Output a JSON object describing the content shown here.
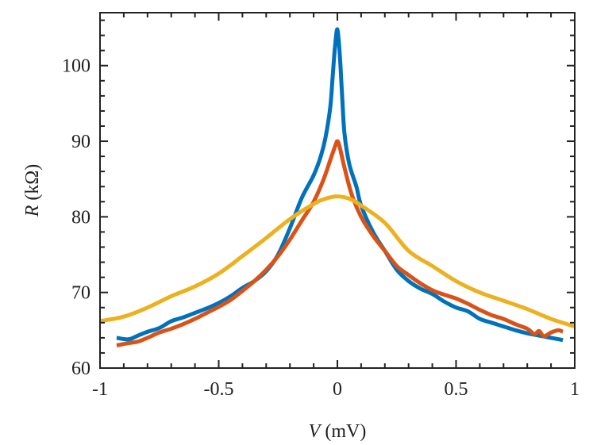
{
  "chart_data": {
    "type": "line",
    "title": "",
    "xlabel": {
      "var": "V",
      "unit": " (mV)"
    },
    "ylabel": {
      "var": "R",
      "unit": " (kΩ)"
    },
    "xlim": [
      -1,
      1
    ],
    "ylim": [
      60,
      107
    ],
    "grid": false,
    "legend": "none",
    "x_ticks": [
      {
        "value": -1,
        "label": "-1"
      },
      {
        "value": -0.5,
        "label": "-0.5"
      },
      {
        "value": 0,
        "label": "0"
      },
      {
        "value": 0.5,
        "label": "0.5"
      },
      {
        "value": 1,
        "label": "1"
      }
    ],
    "y_ticks": [
      {
        "value": 60,
        "label": "60"
      },
      {
        "value": 70,
        "label": "70"
      },
      {
        "value": 80,
        "label": "80"
      },
      {
        "value": 90,
        "label": "90"
      },
      {
        "value": 100,
        "label": "100"
      }
    ],
    "series": [
      {
        "name": "blue",
        "color": "#0072BD",
        "x": [
          -0.93,
          -0.88,
          -0.84,
          -0.8,
          -0.75,
          -0.7,
          -0.65,
          -0.6,
          -0.55,
          -0.5,
          -0.45,
          -0.4,
          -0.35,
          -0.3,
          -0.25,
          -0.2,
          -0.15,
          -0.1,
          -0.07,
          -0.05,
          -0.03,
          -0.02,
          -0.01,
          0,
          0.01,
          0.02,
          0.03,
          0.05,
          0.08,
          0.1,
          0.15,
          0.2,
          0.25,
          0.3,
          0.35,
          0.4,
          0.45,
          0.5,
          0.55,
          0.6,
          0.65,
          0.7,
          0.75,
          0.8,
          0.85,
          0.9,
          0.95
        ],
        "y": [
          64.0,
          63.8,
          64.3,
          64.8,
          65.3,
          66.2,
          66.7,
          67.3,
          67.9,
          68.6,
          69.5,
          70.6,
          71.5,
          72.8,
          75.0,
          78.5,
          82.5,
          85.5,
          88.0,
          90.5,
          94.5,
          98.5,
          102.5,
          104.8,
          101.5,
          96.0,
          91.0,
          87.0,
          84.0,
          81.5,
          78.0,
          75.5,
          73.0,
          71.5,
          70.5,
          69.8,
          68.8,
          68.0,
          67.5,
          66.5,
          66.0,
          65.5,
          65.0,
          64.6,
          64.3,
          64.0,
          63.7
        ]
      },
      {
        "name": "orange",
        "color": "#D95319",
        "x": [
          -0.93,
          -0.88,
          -0.84,
          -0.8,
          -0.75,
          -0.7,
          -0.65,
          -0.6,
          -0.55,
          -0.5,
          -0.45,
          -0.4,
          -0.35,
          -0.3,
          -0.25,
          -0.2,
          -0.15,
          -0.1,
          -0.06,
          -0.03,
          -0.01,
          0,
          0.01,
          0.03,
          0.06,
          0.1,
          0.15,
          0.2,
          0.25,
          0.3,
          0.35,
          0.4,
          0.45,
          0.5,
          0.55,
          0.6,
          0.65,
          0.7,
          0.75,
          0.8,
          0.83,
          0.85,
          0.87,
          0.9,
          0.93,
          0.95
        ],
        "y": [
          63.0,
          63.3,
          63.5,
          64.0,
          64.7,
          65.2,
          65.8,
          66.5,
          67.3,
          68.1,
          69.0,
          70.2,
          71.5,
          73.0,
          74.8,
          77.0,
          79.5,
          82.0,
          84.8,
          87.5,
          89.3,
          90.0,
          89.2,
          86.5,
          83.0,
          80.0,
          77.5,
          75.5,
          73.5,
          72.3,
          71.2,
          70.3,
          69.7,
          69.2,
          68.5,
          67.7,
          67.0,
          66.5,
          65.8,
          65.2,
          64.5,
          64.9,
          64.2,
          64.7,
          65.0,
          64.8
        ]
      },
      {
        "name": "yellow",
        "color": "#EDB120",
        "x": [
          -1,
          -0.9,
          -0.8,
          -0.7,
          -0.6,
          -0.5,
          -0.4,
          -0.3,
          -0.2,
          -0.1,
          -0.05,
          0,
          0.05,
          0.1,
          0.2,
          0.3,
          0.4,
          0.5,
          0.6,
          0.7,
          0.8,
          0.9,
          1
        ],
        "y": [
          66.2,
          66.8,
          68.0,
          69.5,
          70.8,
          72.5,
          74.8,
          77.2,
          79.7,
          81.7,
          82.4,
          82.7,
          82.4,
          81.5,
          79.2,
          75.5,
          73.5,
          71.5,
          70.0,
          68.9,
          67.8,
          66.5,
          65.5
        ]
      }
    ]
  }
}
